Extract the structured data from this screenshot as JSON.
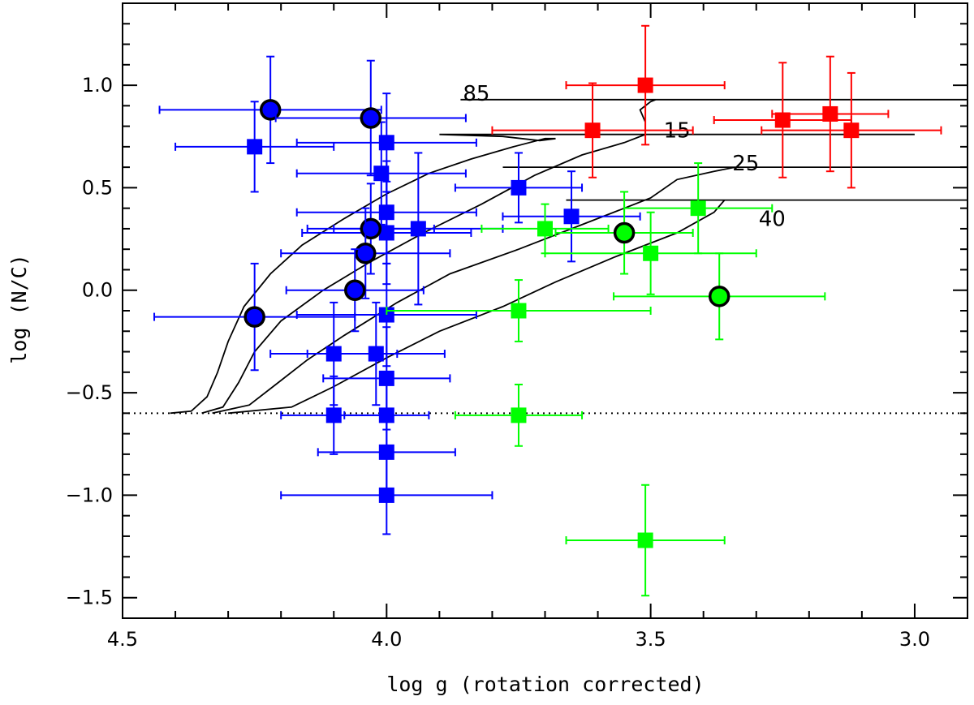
{
  "chart_data": {
    "type": "scatter",
    "title": "",
    "xlabel": "log g (rotation corrected)",
    "ylabel": "log (N/C)",
    "xlim": [
      4.5,
      2.9
    ],
    "ylim": [
      -1.6,
      1.4
    ],
    "x_reversed": true,
    "grid": false,
    "x_ticks": [
      4.5,
      4.0,
      3.5,
      3.0
    ],
    "x_tick_labels": [
      "4.5",
      "4.0",
      "3.5",
      "3.0"
    ],
    "y_ticks": [
      -1.5,
      -1.0,
      -0.5,
      0.0,
      0.5,
      1.0
    ],
    "y_tick_labels": [
      "−1.5",
      "−1.0",
      "−0.5",
      "0.0",
      "0.5",
      "1.0"
    ],
    "reference_line": {
      "y": -0.6,
      "style": "dotted"
    },
    "series": [
      {
        "name": "blue squares",
        "color": "#0000ff",
        "marker": "square",
        "points": [
          {
            "x": 4.25,
            "y": 0.7,
            "xerr": 0.15,
            "yerr": 0.22
          },
          {
            "x": 4.0,
            "y": 0.72,
            "xerr": 0.17,
            "yerr": 0.24
          },
          {
            "x": 4.01,
            "y": 0.57,
            "xerr": 0.16,
            "yerr": 0.25
          },
          {
            "x": 4.0,
            "y": 0.38,
            "xerr": 0.17,
            "yerr": 0.25
          },
          {
            "x": 4.0,
            "y": 0.28,
            "xerr": 0.16,
            "yerr": 0.25
          },
          {
            "x": 3.94,
            "y": 0.3,
            "xerr": 0.16,
            "yerr": 0.37
          },
          {
            "x": 3.75,
            "y": 0.5,
            "xerr": 0.12,
            "yerr": 0.17
          },
          {
            "x": 3.65,
            "y": 0.36,
            "xerr": 0.13,
            "yerr": 0.22
          },
          {
            "x": 4.0,
            "y": -0.12,
            "xerr": 0.17,
            "yerr": 0.25
          },
          {
            "x": 4.1,
            "y": -0.31,
            "xerr": 0.12,
            "yerr": 0.25
          },
          {
            "x": 4.02,
            "y": -0.31,
            "xerr": 0.13,
            "yerr": 0.25
          },
          {
            "x": 4.0,
            "y": -0.43,
            "xerr": 0.12,
            "yerr": 0.25
          },
          {
            "x": 4.1,
            "y": -0.61,
            "xerr": 0.1,
            "yerr": 0.19
          },
          {
            "x": 4.0,
            "y": -0.61,
            "xerr": 0.08,
            "yerr": 0.18
          },
          {
            "x": 4.0,
            "y": -0.79,
            "xerr": 0.13,
            "yerr": 0.2
          },
          {
            "x": 4.0,
            "y": -1.0,
            "xerr": 0.2,
            "yerr": 0.19
          }
        ]
      },
      {
        "name": "blue circles",
        "color": "#0000ff",
        "marker": "circle",
        "points": [
          {
            "x": 4.22,
            "y": 0.88,
            "xerr": 0.21,
            "yerr": 0.26
          },
          {
            "x": 4.03,
            "y": 0.84,
            "xerr": 0.18,
            "yerr": 0.28
          },
          {
            "x": 4.03,
            "y": 0.3,
            "xerr": 0.12,
            "yerr": 0.22
          },
          {
            "x": 4.04,
            "y": 0.18,
            "xerr": 0.16,
            "yerr": 0.22
          },
          {
            "x": 4.06,
            "y": 0.0,
            "xerr": 0.13,
            "yerr": 0.2
          },
          {
            "x": 4.25,
            "y": -0.13,
            "xerr": 0.19,
            "yerr": 0.26
          }
        ]
      },
      {
        "name": "red squares",
        "color": "#ff0000",
        "marker": "square",
        "points": [
          {
            "x": 3.51,
            "y": 1.0,
            "xerr": 0.15,
            "yerr": 0.29
          },
          {
            "x": 3.61,
            "y": 0.78,
            "xerr": 0.19,
            "yerr": 0.23
          },
          {
            "x": 3.25,
            "y": 0.83,
            "xerr": 0.13,
            "yerr": 0.28
          },
          {
            "x": 3.16,
            "y": 0.86,
            "xerr": 0.11,
            "yerr": 0.28
          },
          {
            "x": 3.12,
            "y": 0.78,
            "xerr": 0.17,
            "yerr": 0.28
          }
        ]
      },
      {
        "name": "green squares",
        "color": "#00ff00",
        "marker": "square",
        "points": [
          {
            "x": 3.7,
            "y": 0.3,
            "xerr": 0.12,
            "yerr": 0.12
          },
          {
            "x": 3.41,
            "y": 0.4,
            "xerr": 0.14,
            "yerr": 0.22
          },
          {
            "x": 3.5,
            "y": 0.18,
            "xerr": 0.2,
            "yerr": 0.2
          },
          {
            "x": 3.75,
            "y": -0.1,
            "xerr": 0.25,
            "yerr": 0.15
          },
          {
            "x": 3.75,
            "y": -0.61,
            "xerr": 0.12,
            "yerr": 0.15
          },
          {
            "x": 3.51,
            "y": -1.22,
            "xerr": 0.15,
            "yerr": 0.27
          }
        ]
      },
      {
        "name": "green circles",
        "color": "#00ff00",
        "marker": "circle",
        "points": [
          {
            "x": 3.55,
            "y": 0.28,
            "xerr": 0.13,
            "yerr": 0.2
          },
          {
            "x": 3.37,
            "y": -0.03,
            "xerr": 0.2,
            "yerr": 0.21
          }
        ]
      }
    ],
    "tracks": [
      {
        "label": "85",
        "label_pos": [
          3.83,
          0.96
        ],
        "points": [
          [
            4.41,
            -0.6
          ],
          [
            4.37,
            -0.59
          ],
          [
            4.34,
            -0.52
          ],
          [
            4.32,
            -0.4
          ],
          [
            4.3,
            -0.25
          ],
          [
            4.27,
            -0.08
          ],
          [
            4.22,
            0.08
          ],
          [
            4.16,
            0.22
          ],
          [
            4.08,
            0.35
          ],
          [
            4.0,
            0.47
          ],
          [
            3.92,
            0.57
          ],
          [
            3.84,
            0.64
          ],
          [
            3.76,
            0.7
          ],
          [
            3.7,
            0.74
          ],
          [
            3.68,
            0.74
          ],
          [
            3.71,
            0.73
          ],
          [
            3.78,
            0.75
          ],
          [
            3.9,
            0.76
          ],
          [
            3.0,
            0.76
          ]
        ]
      },
      {
        "label": "15",
        "label_pos": [
          3.45,
          0.78
        ],
        "points": [
          [
            4.35,
            -0.6
          ],
          [
            4.31,
            -0.57
          ],
          [
            4.28,
            -0.45
          ],
          [
            4.25,
            -0.3
          ],
          [
            4.2,
            -0.15
          ],
          [
            4.12,
            0.0
          ],
          [
            4.03,
            0.14
          ],
          [
            3.93,
            0.28
          ],
          [
            3.82,
            0.42
          ],
          [
            3.72,
            0.56
          ],
          [
            3.63,
            0.66
          ],
          [
            3.55,
            0.72
          ],
          [
            3.51,
            0.76
          ],
          [
            3.51,
            0.82
          ],
          [
            3.52,
            0.88
          ],
          [
            3.5,
            0.92
          ],
          [
            3.49,
            0.93
          ],
          [
            3.86,
            0.93
          ],
          [
            2.9,
            0.93
          ]
        ]
      },
      {
        "label": "25",
        "label_pos": [
          3.32,
          0.62
        ],
        "points": [
          [
            4.33,
            -0.6
          ],
          [
            4.26,
            -0.56
          ],
          [
            4.21,
            -0.46
          ],
          [
            4.15,
            -0.34
          ],
          [
            4.08,
            -0.22
          ],
          [
            3.98,
            -0.06
          ],
          [
            3.88,
            0.08
          ],
          [
            3.75,
            0.2
          ],
          [
            3.62,
            0.33
          ],
          [
            3.5,
            0.45
          ],
          [
            3.45,
            0.54
          ],
          [
            3.38,
            0.58
          ],
          [
            3.34,
            0.6
          ],
          [
            3.78,
            0.6
          ],
          [
            2.9,
            0.6
          ]
        ]
      },
      {
        "label": "40",
        "label_pos": [
          3.27,
          0.35
        ],
        "points": [
          [
            4.3,
            -0.6
          ],
          [
            4.18,
            -0.57
          ],
          [
            4.1,
            -0.47
          ],
          [
            4.0,
            -0.33
          ],
          [
            3.9,
            -0.2
          ],
          [
            3.78,
            -0.08
          ],
          [
            3.68,
            0.04
          ],
          [
            3.57,
            0.16
          ],
          [
            3.45,
            0.28
          ],
          [
            3.38,
            0.38
          ],
          [
            3.36,
            0.44
          ],
          [
            3.42,
            0.44
          ],
          [
            3.66,
            0.44
          ],
          [
            2.9,
            0.44
          ]
        ]
      }
    ]
  }
}
